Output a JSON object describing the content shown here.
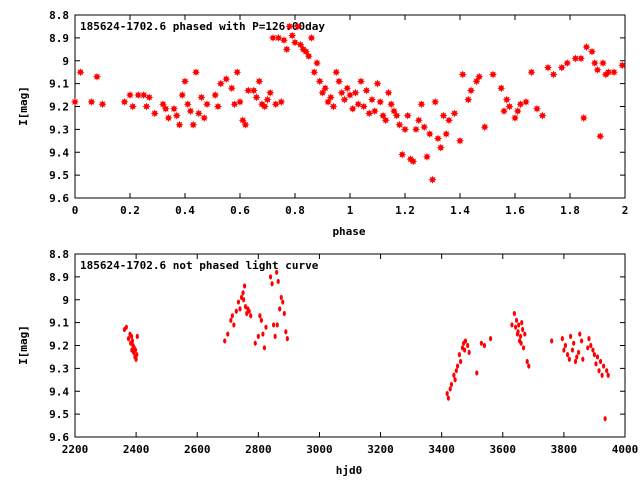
{
  "chart_data": [
    {
      "type": "scatter",
      "title": "185624-1702.6 phased with P=126.00day",
      "xlabel": "phase",
      "ylabel": "I[mag]",
      "xlim": [
        0,
        2
      ],
      "ylim": [
        9.6,
        8.8
      ],
      "y_reversed": true,
      "x_ticks": [
        0,
        0.2,
        0.4,
        0.6,
        0.8,
        1,
        1.2,
        1.4,
        1.6,
        1.8,
        2
      ],
      "x_tick_labels": [
        "0",
        "0.2",
        "0.4",
        "0.6",
        "0.8",
        "1",
        "1.2",
        "1.4",
        "1.6",
        "1.8",
        "2"
      ],
      "y_ticks": [
        8.8,
        8.9,
        9.0,
        9.1,
        9.2,
        9.3,
        9.4,
        9.5,
        9.6
      ],
      "y_tick_labels": [
        "8.8",
        "8.9",
        "9",
        "9.1",
        "9.2",
        "9.3",
        "9.4",
        "9.5",
        "9.6"
      ],
      "grid": false,
      "marker_color": "#ff0000",
      "marker": "star",
      "points": [
        [
          0.0,
          9.18
        ],
        [
          0.02,
          9.05
        ],
        [
          0.06,
          9.18
        ],
        [
          0.08,
          9.07
        ],
        [
          0.1,
          9.19
        ],
        [
          0.18,
          9.18
        ],
        [
          0.2,
          9.15
        ],
        [
          0.21,
          9.2
        ],
        [
          0.23,
          9.15
        ],
        [
          0.25,
          9.15
        ],
        [
          0.26,
          9.2
        ],
        [
          0.27,
          9.16
        ],
        [
          0.29,
          9.23
        ],
        [
          0.32,
          9.19
        ],
        [
          0.33,
          9.21
        ],
        [
          0.34,
          9.25
        ],
        [
          0.36,
          9.21
        ],
        [
          0.37,
          9.24
        ],
        [
          0.38,
          9.28
        ],
        [
          0.39,
          9.15
        ],
        [
          0.4,
          9.09
        ],
        [
          0.41,
          9.19
        ],
        [
          0.42,
          9.22
        ],
        [
          0.43,
          9.28
        ],
        [
          0.44,
          9.05
        ],
        [
          0.45,
          9.23
        ],
        [
          0.46,
          9.16
        ],
        [
          0.47,
          9.25
        ],
        [
          0.48,
          9.19
        ],
        [
          0.51,
          9.15
        ],
        [
          0.52,
          9.2
        ],
        [
          0.53,
          9.1
        ],
        [
          0.55,
          9.08
        ],
        [
          0.57,
          9.12
        ],
        [
          0.58,
          9.19
        ],
        [
          0.59,
          9.05
        ],
        [
          0.6,
          9.18
        ],
        [
          0.61,
          9.26
        ],
        [
          0.62,
          9.28
        ],
        [
          0.63,
          9.13
        ],
        [
          0.65,
          9.13
        ],
        [
          0.66,
          9.16
        ],
        [
          0.67,
          9.09
        ],
        [
          0.68,
          9.19
        ],
        [
          0.69,
          9.2
        ],
        [
          0.7,
          9.17
        ],
        [
          0.71,
          9.14
        ],
        [
          0.72,
          8.9
        ],
        [
          0.73,
          9.19
        ],
        [
          0.74,
          8.9
        ],
        [
          0.75,
          9.18
        ],
        [
          0.76,
          8.91
        ],
        [
          0.77,
          8.95
        ],
        [
          0.78,
          8.85
        ],
        [
          0.79,
          8.89
        ],
        [
          0.8,
          8.92
        ],
        [
          0.81,
          8.85
        ],
        [
          0.82,
          8.93
        ],
        [
          0.83,
          8.95
        ],
        [
          0.84,
          8.96
        ],
        [
          0.85,
          8.98
        ],
        [
          0.86,
          8.9
        ],
        [
          0.87,
          9.05
        ],
        [
          0.88,
          9.01
        ],
        [
          0.89,
          9.09
        ],
        [
          0.9,
          9.14
        ],
        [
          0.91,
          9.12
        ],
        [
          0.92,
          9.18
        ],
        [
          0.93,
          9.16
        ],
        [
          0.94,
          9.2
        ],
        [
          0.95,
          9.05
        ],
        [
          0.96,
          9.09
        ],
        [
          0.97,
          9.14
        ],
        [
          0.98,
          9.17
        ],
        [
          0.99,
          9.12
        ],
        [
          1.0,
          9.15
        ],
        [
          1.01,
          9.21
        ],
        [
          1.02,
          9.14
        ],
        [
          1.03,
          9.19
        ],
        [
          1.04,
          9.09
        ],
        [
          1.05,
          9.2
        ],
        [
          1.06,
          9.13
        ],
        [
          1.07,
          9.23
        ],
        [
          1.08,
          9.17
        ],
        [
          1.09,
          9.22
        ],
        [
          1.1,
          9.1
        ],
        [
          1.11,
          9.18
        ],
        [
          1.12,
          9.24
        ],
        [
          1.13,
          9.26
        ],
        [
          1.14,
          9.14
        ],
        [
          1.15,
          9.19
        ],
        [
          1.16,
          9.22
        ],
        [
          1.17,
          9.24
        ],
        [
          1.18,
          9.28
        ],
        [
          1.19,
          9.41
        ],
        [
          1.2,
          9.3
        ],
        [
          1.21,
          9.24
        ],
        [
          1.22,
          9.43
        ],
        [
          1.23,
          9.44
        ],
        [
          1.24,
          9.3
        ],
        [
          1.25,
          9.26
        ],
        [
          1.26,
          9.19
        ],
        [
          1.27,
          9.29
        ],
        [
          1.28,
          9.42
        ],
        [
          1.29,
          9.32
        ],
        [
          1.3,
          9.52
        ],
        [
          1.31,
          9.18
        ],
        [
          1.32,
          9.34
        ],
        [
          1.33,
          9.38
        ],
        [
          1.34,
          9.24
        ],
        [
          1.35,
          9.32
        ],
        [
          1.36,
          9.26
        ],
        [
          1.38,
          9.23
        ],
        [
          1.4,
          9.35
        ],
        [
          1.41,
          9.06
        ],
        [
          1.43,
          9.17
        ],
        [
          1.44,
          9.13
        ],
        [
          1.46,
          9.09
        ],
        [
          1.47,
          9.07
        ],
        [
          1.49,
          9.29
        ],
        [
          1.52,
          9.06
        ],
        [
          1.55,
          9.12
        ],
        [
          1.56,
          9.22
        ],
        [
          1.57,
          9.17
        ],
        [
          1.58,
          9.2
        ],
        [
          1.6,
          9.25
        ],
        [
          1.61,
          9.22
        ],
        [
          1.62,
          9.19
        ],
        [
          1.64,
          9.18
        ],
        [
          1.66,
          9.05
        ],
        [
          1.68,
          9.21
        ],
        [
          1.7,
          9.24
        ],
        [
          1.72,
          9.03
        ],
        [
          1.74,
          9.06
        ],
        [
          1.77,
          9.03
        ],
        [
          1.79,
          9.01
        ],
        [
          1.82,
          8.99
        ],
        [
          1.84,
          8.99
        ],
        [
          1.85,
          9.25
        ],
        [
          1.86,
          8.94
        ],
        [
          1.88,
          8.96
        ],
        [
          1.89,
          9.01
        ],
        [
          1.9,
          9.04
        ],
        [
          1.91,
          9.33
        ],
        [
          1.92,
          9.01
        ],
        [
          1.93,
          9.06
        ],
        [
          1.94,
          9.05
        ],
        [
          1.96,
          9.05
        ],
        [
          1.99,
          9.02
        ]
      ]
    },
    {
      "type": "scatter",
      "title": "185624-1702.6 not phased light curve",
      "xlabel": "hjd0",
      "ylabel": "I[mag]",
      "xlim": [
        2200,
        4000
      ],
      "ylim": [
        9.6,
        8.8
      ],
      "y_reversed": true,
      "x_ticks": [
        2200,
        2400,
        2600,
        2800,
        3000,
        3200,
        3400,
        3600,
        3800,
        4000
      ],
      "x_tick_labels": [
        "2200",
        "2400",
        "2600",
        "2800",
        "3000",
        "3200",
        "3400",
        "3600",
        "3800",
        "4000"
      ],
      "y_ticks": [
        8.8,
        8.9,
        9.0,
        9.1,
        9.2,
        9.3,
        9.4,
        9.5,
        9.6
      ],
      "y_tick_labels": [
        "8.8",
        "8.9",
        "9",
        "9.1",
        "9.2",
        "9.3",
        "9.4",
        "9.5",
        "9.6"
      ],
      "grid": false,
      "marker_color": "#ff0000",
      "marker": "dot",
      "points": [
        [
          2362,
          9.13
        ],
        [
          2368,
          9.12
        ],
        [
          2375,
          9.17
        ],
        [
          2380,
          9.15
        ],
        [
          2382,
          9.19
        ],
        [
          2385,
          9.16
        ],
        [
          2386,
          9.22
        ],
        [
          2388,
          9.18
        ],
        [
          2390,
          9.2
        ],
        [
          2392,
          9.23
        ],
        [
          2394,
          9.21
        ],
        [
          2396,
          9.25
        ],
        [
          2398,
          9.22
        ],
        [
          2400,
          9.26
        ],
        [
          2402,
          9.24
        ],
        [
          2404,
          9.16
        ],
        [
          2690,
          9.18
        ],
        [
          2700,
          9.15
        ],
        [
          2710,
          9.09
        ],
        [
          2715,
          9.07
        ],
        [
          2720,
          9.11
        ],
        [
          2728,
          9.05
        ],
        [
          2735,
          9.01
        ],
        [
          2740,
          9.04
        ],
        [
          2745,
          8.99
        ],
        [
          2750,
          8.97
        ],
        [
          2752,
          9.0
        ],
        [
          2755,
          8.94
        ],
        [
          2758,
          9.03
        ],
        [
          2762,
          9.06
        ],
        [
          2766,
          9.04
        ],
        [
          2770,
          9.05
        ],
        [
          2775,
          9.07
        ],
        [
          2790,
          9.19
        ],
        [
          2800,
          9.16
        ],
        [
          2805,
          9.07
        ],
        [
          2810,
          9.09
        ],
        [
          2815,
          9.15
        ],
        [
          2820,
          9.21
        ],
        [
          2825,
          9.12
        ],
        [
          2840,
          8.9
        ],
        [
          2845,
          8.93
        ],
        [
          2850,
          9.11
        ],
        [
          2855,
          9.16
        ],
        [
          2860,
          8.88
        ],
        [
          2862,
          9.11
        ],
        [
          2865,
          8.92
        ],
        [
          2870,
          9.04
        ],
        [
          2875,
          8.99
        ],
        [
          2880,
          9.01
        ],
        [
          2885,
          9.06
        ],
        [
          2890,
          9.14
        ],
        [
          2895,
          9.17
        ],
        [
          3418,
          9.41
        ],
        [
          3422,
          9.43
        ],
        [
          3428,
          9.39
        ],
        [
          3432,
          9.37
        ],
        [
          3440,
          9.33
        ],
        [
          3444,
          9.35
        ],
        [
          3448,
          9.31
        ],
        [
          3452,
          9.29
        ],
        [
          3458,
          9.24
        ],
        [
          3462,
          9.27
        ],
        [
          3468,
          9.21
        ],
        [
          3472,
          9.19
        ],
        [
          3475,
          9.22
        ],
        [
          3478,
          9.18
        ],
        [
          3485,
          9.2
        ],
        [
          3490,
          9.23
        ],
        [
          3515,
          9.32
        ],
        [
          3530,
          9.19
        ],
        [
          3540,
          9.2
        ],
        [
          3560,
          9.17
        ],
        [
          3630,
          9.11
        ],
        [
          3638,
          9.06
        ],
        [
          3642,
          9.12
        ],
        [
          3645,
          9.09
        ],
        [
          3648,
          9.15
        ],
        [
          3650,
          9.14
        ],
        [
          3652,
          9.11
        ],
        [
          3655,
          9.18
        ],
        [
          3658,
          9.16
        ],
        [
          3660,
          9.19
        ],
        [
          3662,
          9.1
        ],
        [
          3665,
          9.13
        ],
        [
          3668,
          9.21
        ],
        [
          3672,
          9.15
        ],
        [
          3680,
          9.27
        ],
        [
          3685,
          9.29
        ],
        [
          3760,
          9.18
        ],
        [
          3795,
          9.17
        ],
        [
          3800,
          9.22
        ],
        [
          3805,
          9.2
        ],
        [
          3812,
          9.24
        ],
        [
          3818,
          9.26
        ],
        [
          3822,
          9.16
        ],
        [
          3828,
          9.22
        ],
        [
          3832,
          9.19
        ],
        [
          3838,
          9.27
        ],
        [
          3842,
          9.25
        ],
        [
          3848,
          9.23
        ],
        [
          3852,
          9.15
        ],
        [
          3858,
          9.18
        ],
        [
          3862,
          9.26
        ],
        [
          3878,
          9.21
        ],
        [
          3882,
          9.17
        ],
        [
          3888,
          9.2
        ],
        [
          3895,
          9.22
        ],
        [
          3900,
          9.24
        ],
        [
          3905,
          9.28
        ],
        [
          3910,
          9.25
        ],
        [
          3915,
          9.31
        ],
        [
          3920,
          9.27
        ],
        [
          3925,
          9.33
        ],
        [
          3930,
          9.29
        ],
        [
          3935,
          9.52
        ],
        [
          3940,
          9.31
        ],
        [
          3945,
          9.33
        ]
      ]
    }
  ]
}
